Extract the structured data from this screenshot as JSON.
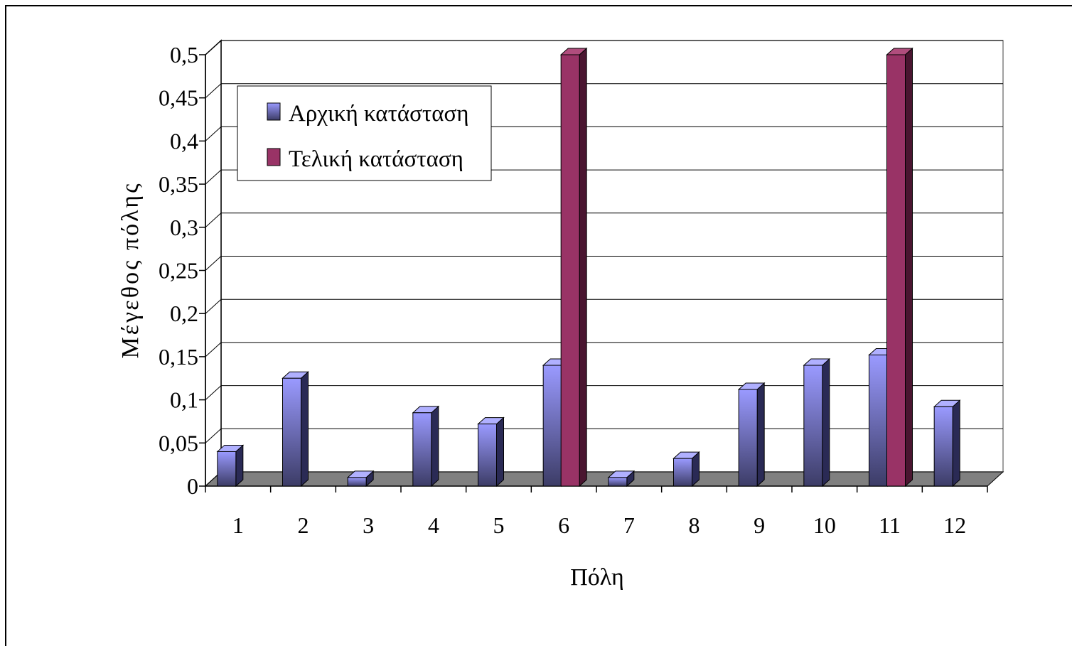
{
  "chart_data": {
    "type": "bar",
    "title": "",
    "xlabel": "Πόλη",
    "ylabel": "Μέγεθος πόλης",
    "categories": [
      "1",
      "2",
      "3",
      "4",
      "5",
      "6",
      "7",
      "8",
      "9",
      "10",
      "11",
      "12"
    ],
    "series": [
      {
        "name": "Αρχική κατάσταση",
        "color": "#8f8fef",
        "values": [
          0.04,
          0.125,
          0.01,
          0.085,
          0.072,
          0.14,
          0.01,
          0.032,
          0.112,
          0.14,
          0.152,
          0.092
        ]
      },
      {
        "name": "Τελική κατάσταση",
        "color": "#993366",
        "values": [
          0,
          0,
          0,
          0,
          0,
          0.5,
          0,
          0,
          0,
          0,
          0.5,
          0
        ]
      }
    ],
    "ylim": [
      0,
      0.5
    ],
    "yticks": [
      "0",
      "0,05",
      "0,1",
      "0,15",
      "0,2",
      "0,25",
      "0,3",
      "0,35",
      "0,4",
      "0,45",
      "0,5"
    ],
    "grid": true,
    "legend": "top-left",
    "style": "3d-column"
  }
}
